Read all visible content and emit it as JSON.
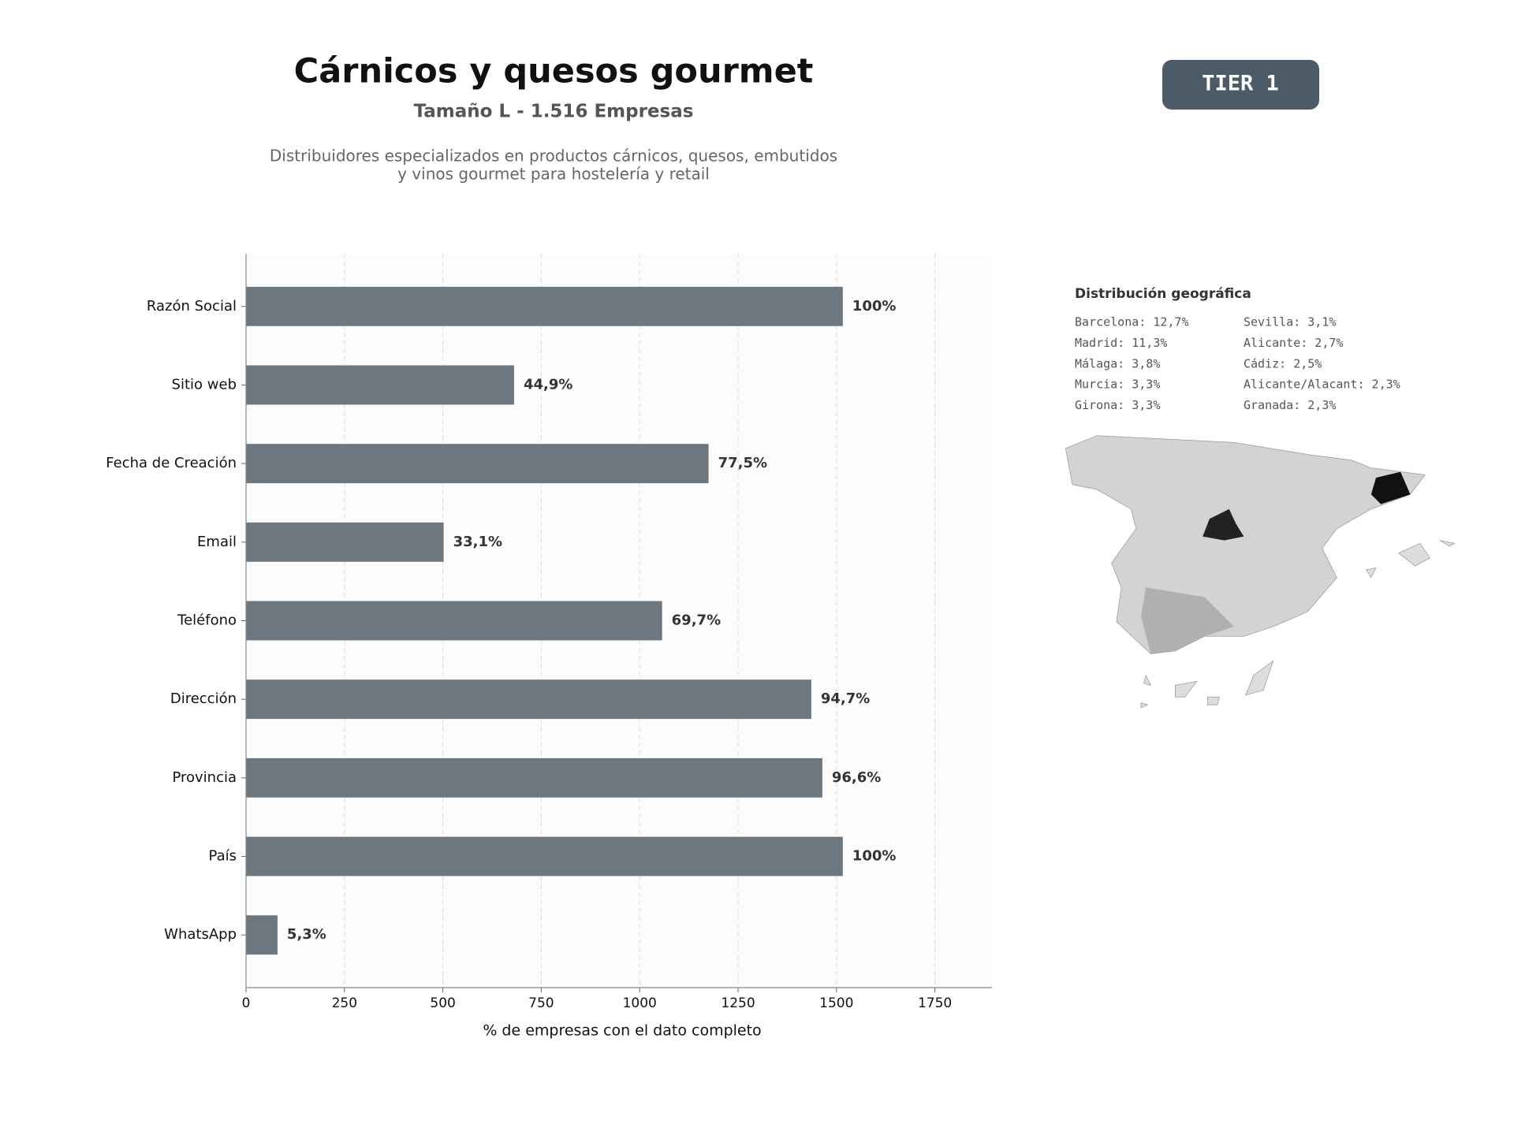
{
  "header": {
    "title": "Cárnicos y quesos gourmet",
    "subtitle": "Tamaño L - 1.516 Empresas",
    "description": [
      "Distribuidores especializados en productos cárnicos, quesos, embutidos",
      "y vinos gourmet para hostelería y retail"
    ],
    "badge": "TIER 1"
  },
  "chart_data": {
    "type": "barh",
    "xlabel": "% de empresas con el dato completo",
    "categories": [
      "Razón Social",
      "Sitio web",
      "Fecha de Creación",
      "Email",
      "Teléfono",
      "Dirección",
      "Provincia",
      "País",
      "WhatsApp"
    ],
    "values": [
      1516,
      681,
      1175,
      502,
      1057,
      1436,
      1464,
      1516,
      80
    ],
    "value_labels": [
      "100%",
      "44,9%",
      "77,5%",
      "33,1%",
      "69,7%",
      "94,7%",
      "96,6%",
      "100%",
      "5,3%"
    ],
    "color": "#6c7780",
    "xlim": [
      0,
      1895
    ],
    "xticks": [
      0,
      250,
      500,
      750,
      1000,
      1250,
      1500,
      1750
    ],
    "grid": true
  },
  "geo": {
    "title": "Distribución geográfica",
    "items": [
      "Barcelona: 12,7%",
      "Madrid: 11,3%",
      "Málaga: 3,8%",
      "Murcia: 3,3%",
      "Girona: 3,3%",
      "Sevilla: 3,1%",
      "Alicante: 2,7%",
      "Cádiz: 2,5%",
      "Alicante/Alacant: 2,3%",
      "Granada: 2,3%"
    ]
  }
}
